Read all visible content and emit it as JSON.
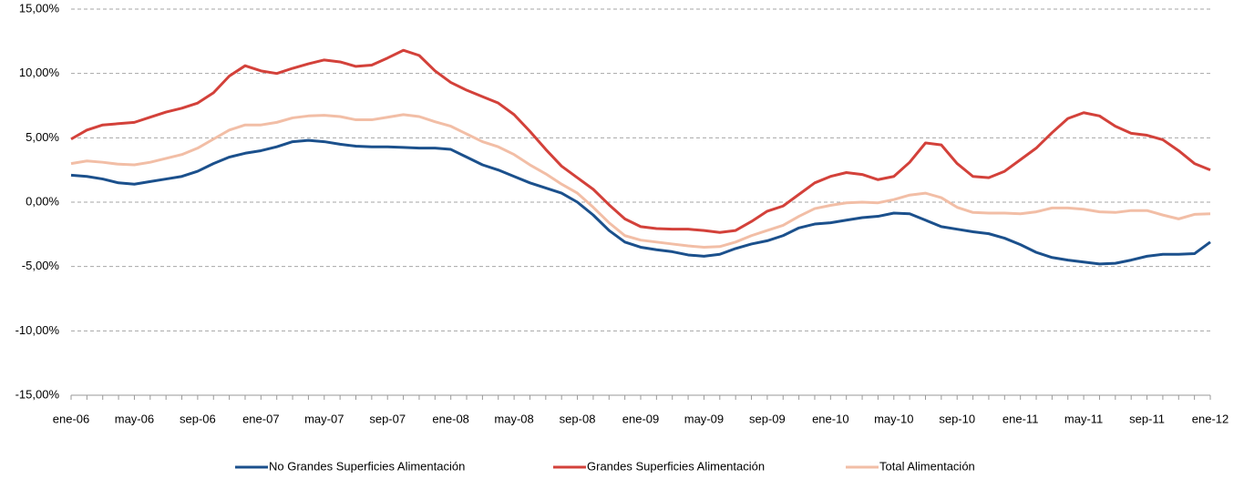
{
  "chart_data": {
    "type": "line",
    "categories": [
      "ene-06",
      null,
      null,
      null,
      "may-06",
      null,
      null,
      null,
      "sep-06",
      null,
      null,
      null,
      "ene-07",
      null,
      null,
      null,
      "may-07",
      null,
      null,
      null,
      "sep-07",
      null,
      null,
      null,
      "ene-08",
      null,
      null,
      null,
      "may-08",
      null,
      null,
      null,
      "sep-08",
      null,
      null,
      null,
      "ene-09",
      null,
      null,
      null,
      "may-09",
      null,
      null,
      null,
      "sep-09",
      null,
      null,
      null,
      "ene-10",
      null,
      null,
      null,
      "may-10",
      null,
      null,
      null,
      "sep-10",
      null,
      null,
      null,
      "ene-11",
      null,
      null,
      null,
      "may-11",
      null,
      null,
      null,
      "sep-11",
      null,
      null,
      null,
      "ene-12"
    ],
    "series": [
      {
        "name": "No Grandes Superficies Alimentación",
        "color": "#1b508c",
        "values": [
          2.1,
          2.0,
          1.8,
          1.5,
          1.4,
          1.6,
          1.8,
          2.0,
          2.4,
          3.0,
          3.5,
          3.8,
          4.0,
          4.3,
          4.7,
          4.8,
          4.7,
          4.5,
          4.35,
          4.3,
          4.3,
          4.25,
          4.2,
          4.2,
          4.1,
          3.5,
          2.9,
          2.5,
          2.0,
          1.5,
          1.1,
          0.7,
          0.0,
          -1.0,
          -2.2,
          -3.1,
          -3.5,
          -3.7,
          -3.85,
          -4.1,
          -4.2,
          -4.05,
          -3.6,
          -3.25,
          -3.0,
          -2.6,
          -2.0,
          -1.7,
          -1.6,
          -1.4,
          -1.2,
          -1.1,
          -0.85,
          -0.9,
          -1.4,
          -1.9,
          -2.1,
          -2.3,
          -2.45,
          -2.8,
          -3.3,
          -3.9,
          -4.3,
          -4.5,
          -4.65,
          -4.8,
          -4.75,
          -4.5,
          -4.2,
          -4.05,
          -4.05,
          -4.0,
          -3.1
        ]
      },
      {
        "name": "Grandes Superficies Alimentación",
        "color": "#d3413a",
        "values": [
          4.9,
          5.6,
          6.0,
          6.1,
          6.2,
          6.6,
          7.0,
          7.3,
          7.7,
          8.5,
          9.8,
          10.6,
          10.2,
          10.0,
          10.4,
          10.75,
          11.05,
          10.9,
          10.55,
          10.65,
          11.2,
          11.8,
          11.4,
          10.2,
          9.3,
          8.7,
          8.2,
          7.7,
          6.8,
          5.5,
          4.1,
          2.8,
          1.9,
          1.0,
          -0.2,
          -1.3,
          -1.9,
          -2.05,
          -2.1,
          -2.1,
          -2.2,
          -2.35,
          -2.2,
          -1.5,
          -0.7,
          -0.3,
          0.6,
          1.5,
          2.0,
          2.3,
          2.15,
          1.75,
          2.0,
          3.1,
          4.6,
          4.45,
          3.0,
          2.0,
          1.9,
          2.4,
          3.3,
          4.2,
          5.4,
          6.5,
          6.95,
          6.7,
          5.9,
          5.35,
          5.2,
          4.85,
          4.0,
          3.0,
          2.5
        ]
      },
      {
        "name": "Total Alimentación",
        "color": "#f2bea6",
        "values": [
          3.0,
          3.2,
          3.1,
          2.95,
          2.9,
          3.1,
          3.4,
          3.7,
          4.2,
          4.9,
          5.6,
          6.0,
          6.0,
          6.2,
          6.55,
          6.7,
          6.75,
          6.65,
          6.4,
          6.4,
          6.6,
          6.8,
          6.65,
          6.25,
          5.9,
          5.3,
          4.7,
          4.3,
          3.7,
          2.9,
          2.2,
          1.4,
          0.7,
          -0.4,
          -1.6,
          -2.6,
          -2.95,
          -3.1,
          -3.25,
          -3.4,
          -3.5,
          -3.45,
          -3.1,
          -2.6,
          -2.2,
          -1.8,
          -1.1,
          -0.5,
          -0.25,
          -0.05,
          0.0,
          -0.05,
          0.2,
          0.55,
          0.7,
          0.35,
          -0.4,
          -0.8,
          -0.85,
          -0.85,
          -0.9,
          -0.75,
          -0.45,
          -0.45,
          -0.55,
          -0.75,
          -0.8,
          -0.65,
          -0.65,
          -1.0,
          -1.3,
          -0.95,
          -0.9
        ]
      }
    ],
    "ylim": [
      -15,
      15
    ],
    "yticks": [
      {
        "value": -15,
        "label": "-15,00%"
      },
      {
        "value": -10,
        "label": "-10,00%"
      },
      {
        "value": -5,
        "label": "-5,00%"
      },
      {
        "value": 0,
        "label": "0,00%"
      },
      {
        "value": 5,
        "label": "5,00%"
      },
      {
        "value": 10,
        "label": "10,00%"
      },
      {
        "value": 15,
        "label": "15,00%"
      }
    ],
    "grid": true,
    "legend": "bottom"
  }
}
